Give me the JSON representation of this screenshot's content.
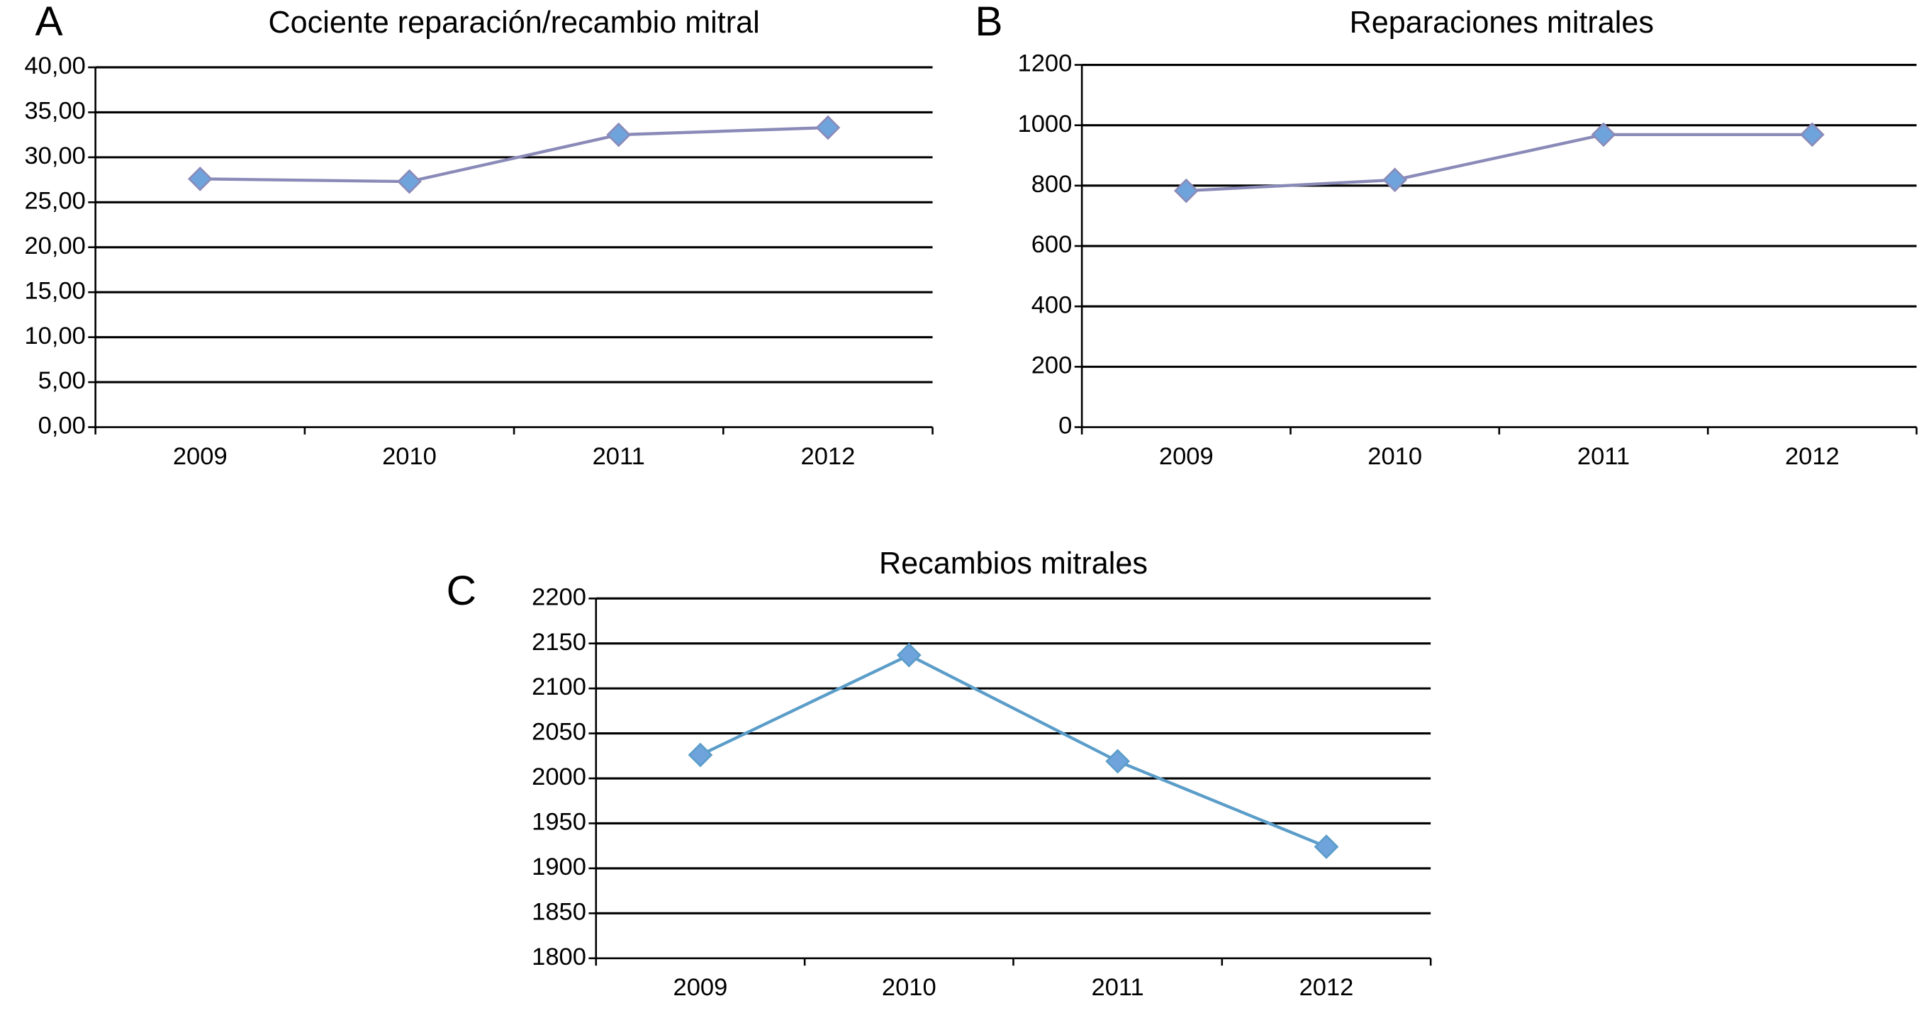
{
  "chart_data": [
    {
      "type": "line",
      "label": "A",
      "title": "Cociente reparación/recambio mitral",
      "categories": [
        "2009",
        "2010",
        "2011",
        "2012"
      ],
      "series": [
        {
          "color": "#8a8ab8",
          "marker_color": "#6ea3dc",
          "values": [
            27.6,
            27.3,
            32.5,
            33.3
          ]
        }
      ],
      "ylim": [
        0,
        40
      ],
      "yticks": [
        {
          "value": 0,
          "label": "0,00"
        },
        {
          "value": 5,
          "label": "5,00"
        },
        {
          "value": 10,
          "label": "10,00"
        },
        {
          "value": 15,
          "label": "15,00"
        },
        {
          "value": 20,
          "label": "20,00"
        },
        {
          "value": 25,
          "label": "25,00"
        },
        {
          "value": 30,
          "label": "30,00"
        },
        {
          "value": 35,
          "label": "35,00"
        },
        {
          "value": 40,
          "label": "40,00"
        }
      ],
      "grid": true
    },
    {
      "type": "line",
      "label": "B",
      "title": "Reparaciones mitrales",
      "categories": [
        "2009",
        "2010",
        "2011",
        "2012"
      ],
      "series": [
        {
          "color": "#8a8ab8",
          "marker_color": "#6ea3dc",
          "values": [
            783,
            819,
            969,
            969
          ]
        }
      ],
      "ylim": [
        0,
        1200
      ],
      "yticks": [
        0,
        200,
        400,
        600,
        800,
        1000,
        1200
      ],
      "grid": true
    },
    {
      "type": "line",
      "label": "C",
      "title": "Recambios mitrales",
      "categories": [
        "2009",
        "2010",
        "2011",
        "2012"
      ],
      "series": [
        {
          "color": "#5b9dc9",
          "marker_color": "#6ea3dc",
          "values": [
            2026,
            2137,
            2019,
            1924
          ]
        }
      ],
      "ylim": [
        1800,
        2200
      ],
      "yticks": [
        1800,
        1850,
        1900,
        1950,
        2000,
        2050,
        2100,
        2150,
        2200
      ],
      "grid": true
    }
  ]
}
